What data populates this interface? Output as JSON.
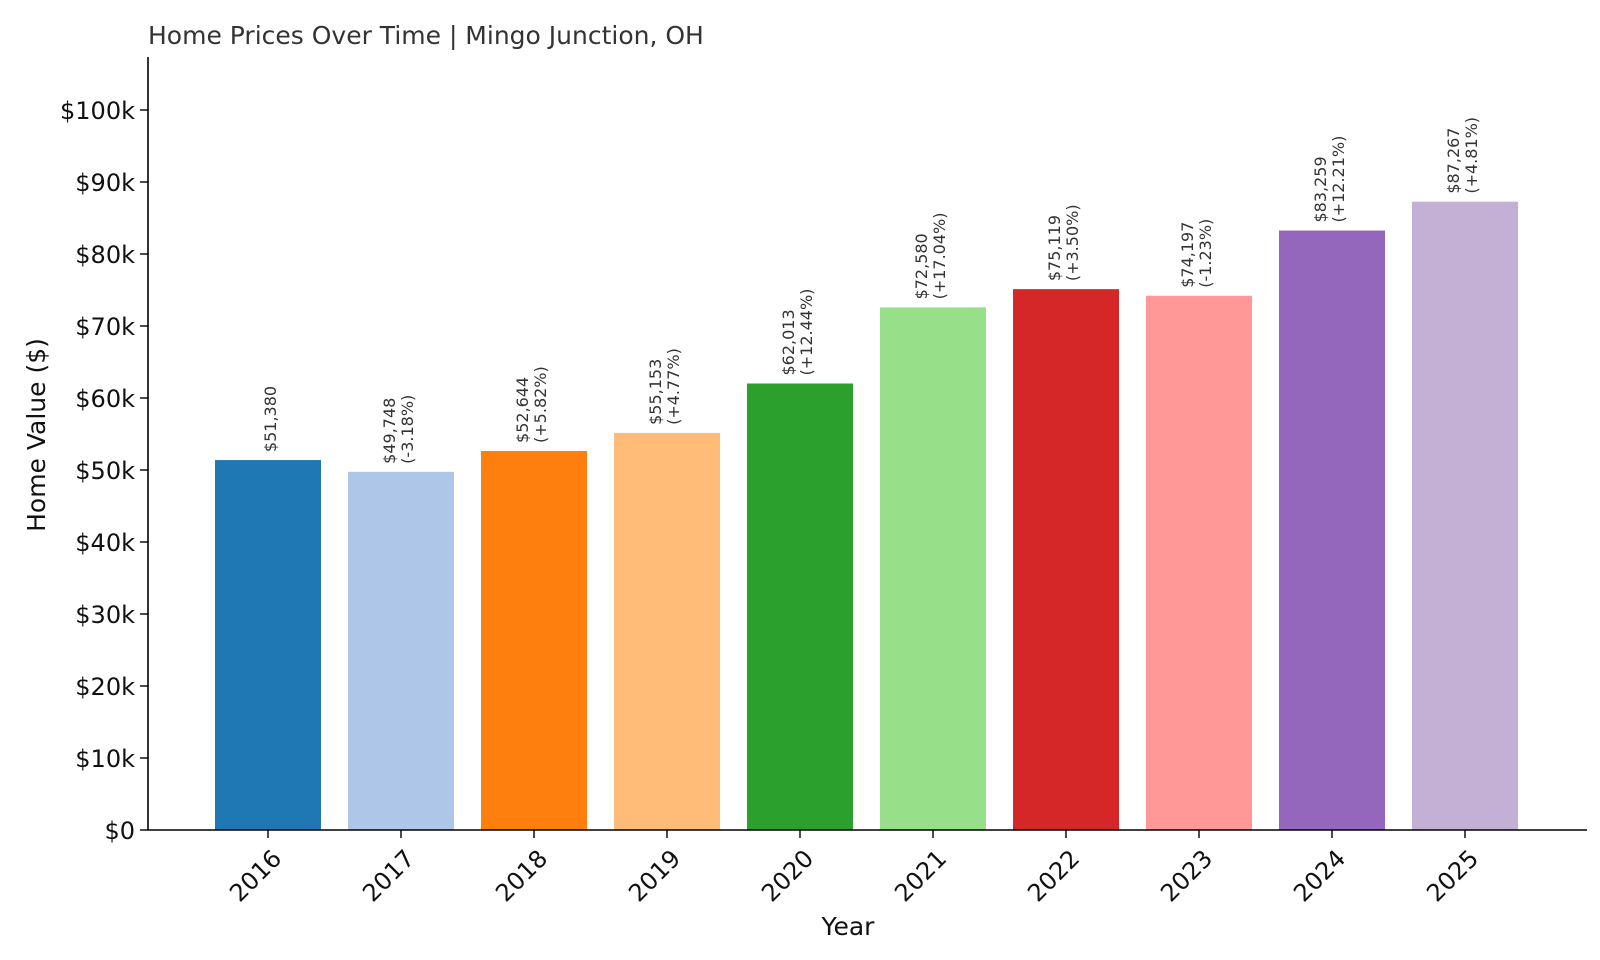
{
  "chart_data": {
    "type": "bar",
    "title": "Home Prices Over Time | Mingo Junction, OH",
    "xlabel": "Year",
    "ylabel": "Home Value ($)",
    "ylim": [
      0,
      107000
    ],
    "yticks": [
      0,
      10000,
      20000,
      30000,
      40000,
      50000,
      60000,
      70000,
      80000,
      90000,
      100000
    ],
    "ytick_labels": [
      "$0",
      "$10k",
      "$20k",
      "$30k",
      "$40k",
      "$50k",
      "$60k",
      "$70k",
      "$80k",
      "$90k",
      "$100k"
    ],
    "categories": [
      "2016",
      "2017",
      "2018",
      "2019",
      "2020",
      "2021",
      "2022",
      "2023",
      "2024",
      "2025"
    ],
    "values": [
      51380,
      49748,
      52644,
      55153,
      62013,
      72580,
      75119,
      74197,
      83259,
      87267
    ],
    "value_labels": [
      "$51,380",
      "$49,748",
      "$52,644",
      "$55,153",
      "$62,013",
      "$72,580",
      "$75,119",
      "$74,197",
      "$83,259",
      "$87,267"
    ],
    "change_labels": [
      "",
      "(-3.18%)",
      "(+5.82%)",
      "(+4.77%)",
      "(+12.44%)",
      "(+17.04%)",
      "(+3.50%)",
      "(-1.23%)",
      "(+12.21%)",
      "(+4.81%)"
    ],
    "colors": [
      "#1f77b4",
      "#aec7e8",
      "#ff7f0e",
      "#ffbb78",
      "#2ca02c",
      "#98df8a",
      "#d62728",
      "#ff9896",
      "#9467bd",
      "#c5b0d5"
    ],
    "grid": false,
    "legend": "none"
  }
}
